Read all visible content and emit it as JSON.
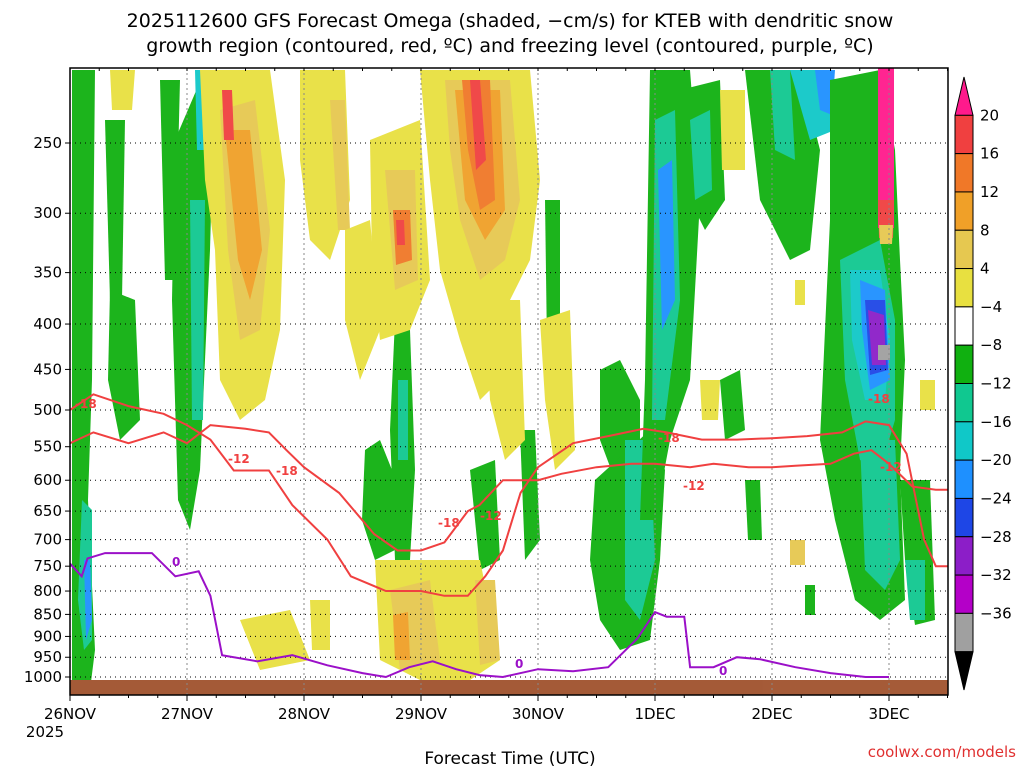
{
  "chart_data": {
    "type": "heatmap",
    "title_line1": "2025112600 GFS Forecast Omega (shaded, −cm/s) for KTEB with dendritic snow",
    "title_line2": "growth region (contoured, red, ºC) and freezing level (contoured, purple, ºC)",
    "xlabel": "Forecast Time (UTC)",
    "credit": "coolwx.com/models",
    "x_ticks": [
      "26NOV",
      "27NOV",
      "28NOV",
      "29NOV",
      "30NOV",
      "1DEC",
      "2DEC",
      "3DEC"
    ],
    "x_year": "2025",
    "x_range_days": [
      0,
      7.5
    ],
    "y_ticks": [
      250,
      300,
      350,
      400,
      450,
      500,
      550,
      600,
      650,
      700,
      750,
      800,
      850,
      900,
      950,
      1000
    ],
    "y_range_hpa": [
      200,
      1025
    ],
    "colorbar": {
      "labels": [
        "20",
        "16",
        "12",
        "8",
        "4",
        "−4",
        "−8",
        "−12",
        "−16",
        "−20",
        "−24",
        "−28",
        "−32",
        "−36"
      ],
      "colors": [
        "#ff1a8c",
        "#f04040",
        "#f07828",
        "#f0a028",
        "#e6c850",
        "#e8e040",
        "#ffffff",
        "#10b010",
        "#10c890",
        "#10c8c8",
        "#1e90ff",
        "#1e46e6",
        "#8c1ec8",
        "#b400c8",
        "#a0a0a0",
        "#000000"
      ]
    },
    "contour_labels_red": [
      "-18",
      "-12",
      "-18",
      "-18",
      "-12",
      "-18",
      "-12",
      "-18",
      "-12"
    ],
    "contour_labels_purple": [
      "0",
      "0",
      "0"
    ],
    "dgz_minus12_hpa": [
      [
        0,
        545
      ],
      [
        0.2,
        530
      ],
      [
        0.5,
        545
      ],
      [
        0.8,
        530
      ],
      [
        1.0,
        545
      ],
      [
        1.2,
        520
      ],
      [
        1.5,
        525
      ],
      [
        1.7,
        530
      ],
      [
        1.85,
        555
      ],
      [
        2.0,
        580
      ],
      [
        2.3,
        620
      ],
      [
        2.6,
        690
      ],
      [
        2.8,
        720
      ],
      [
        3.0,
        720
      ],
      [
        3.2,
        705
      ],
      [
        3.4,
        650
      ],
      [
        3.5,
        640
      ],
      [
        3.7,
        600
      ],
      [
        4.0,
        600
      ],
      [
        4.2,
        590
      ],
      [
        4.5,
        580
      ],
      [
        4.8,
        575
      ],
      [
        5.0,
        575
      ],
      [
        5.3,
        580
      ],
      [
        5.5,
        575
      ],
      [
        5.8,
        580
      ],
      [
        6.0,
        580
      ],
      [
        6.2,
        578
      ],
      [
        6.5,
        575
      ],
      [
        6.7,
        560
      ],
      [
        6.85,
        555
      ],
      [
        7.0,
        575
      ],
      [
        7.2,
        610
      ],
      [
        7.4,
        615
      ],
      [
        7.5,
        615
      ]
    ],
    "dgz_minus18_hpa": [
      [
        0,
        500
      ],
      [
        0.2,
        480
      ],
      [
        0.5,
        495
      ],
      [
        0.8,
        505
      ],
      [
        1.0,
        520
      ],
      [
        1.2,
        540
      ],
      [
        1.4,
        585
      ],
      [
        1.7,
        585
      ],
      [
        1.9,
        640
      ],
      [
        2.2,
        700
      ],
      [
        2.4,
        770
      ],
      [
        2.7,
        800
      ],
      [
        3.0,
        800
      ],
      [
        3.2,
        810
      ],
      [
        3.4,
        810
      ],
      [
        3.55,
        770
      ],
      [
        3.7,
        720
      ],
      [
        3.85,
        620
      ],
      [
        4.0,
        580
      ],
      [
        4.3,
        545
      ],
      [
        4.6,
        535
      ],
      [
        4.9,
        525
      ],
      [
        5.1,
        530
      ],
      [
        5.4,
        540
      ],
      [
        5.7,
        540
      ],
      [
        6.0,
        538
      ],
      [
        6.3,
        535
      ],
      [
        6.6,
        530
      ],
      [
        6.8,
        515
      ],
      [
        7.0,
        520
      ],
      [
        7.15,
        560
      ],
      [
        7.3,
        700
      ],
      [
        7.4,
        750
      ],
      [
        7.5,
        750
      ]
    ],
    "freezing_level_hpa": [
      [
        0,
        745
      ],
      [
        0.1,
        770
      ],
      [
        0.15,
        735
      ],
      [
        0.3,
        725
      ],
      [
        0.5,
        725
      ],
      [
        0.7,
        725
      ],
      [
        0.9,
        770
      ],
      [
        1.1,
        760
      ],
      [
        1.2,
        810
      ],
      [
        1.3,
        945
      ],
      [
        1.6,
        960
      ],
      [
        1.9,
        945
      ],
      [
        2.2,
        970
      ],
      [
        2.5,
        990
      ],
      [
        2.7,
        1000
      ],
      [
        2.9,
        975
      ],
      [
        3.1,
        960
      ],
      [
        3.3,
        980
      ],
      [
        3.5,
        995
      ],
      [
        3.7,
        1000
      ],
      [
        4.0,
        980
      ],
      [
        4.3,
        985
      ],
      [
        4.6,
        975
      ],
      [
        4.85,
        905
      ],
      [
        5.0,
        845
      ],
      [
        5.1,
        855
      ],
      [
        5.25,
        855
      ],
      [
        5.3,
        975
      ],
      [
        5.5,
        975
      ],
      [
        5.7,
        950
      ],
      [
        5.9,
        955
      ],
      [
        6.2,
        975
      ],
      [
        6.5,
        990
      ],
      [
        6.8,
        1000
      ],
      [
        7.0,
        1000
      ]
    ]
  }
}
